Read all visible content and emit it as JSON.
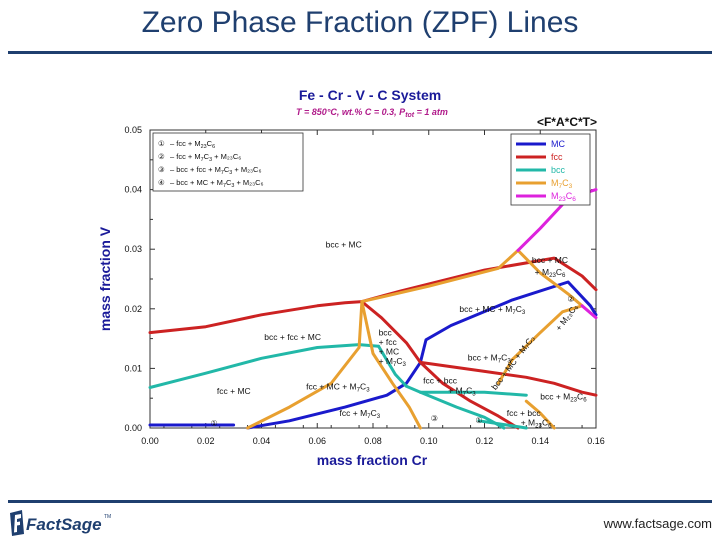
{
  "slide": {
    "title": "Zero Phase Fraction (ZPF) Lines",
    "footer_url": "www.factsage.com",
    "logo_text": "FactSage",
    "logo_tm": "TM"
  },
  "colors": {
    "MC": "#1a1acc",
    "fcc": "#cc2222",
    "bcc": "#22b8a8",
    "M7C3": "#e8a030",
    "M23C6": "#dd22dd",
    "title_blue": "#1f3f6f",
    "chart_title": "#1a1a99",
    "chart_subtitle": "#b01a8a"
  },
  "chart_data": {
    "type": "line",
    "title": "Fe - Cr - V - C System",
    "subtitle": "T = 850°C, wt.% C = 0.3, P",
    "subtitle_sub": "tot",
    "subtitle_tail": " = 1 atm",
    "axis_code": "<F*A*C*T>",
    "xlabel": "mass fraction Cr",
    "ylabel": "mass fraction V",
    "xlim": [
      0,
      0.16
    ],
    "ylim": [
      0,
      0.05
    ],
    "xticks": [
      "0.00",
      "0.02",
      "0.04",
      "0.06",
      "0.08",
      "0.10",
      "0.12",
      "0.14",
      "0.16"
    ],
    "yticks": [
      "0.00",
      "0.01",
      "0.02",
      "0.03",
      "0.04",
      "0.05"
    ],
    "grid": false,
    "legend_position": "top-right",
    "legend": [
      {
        "key": "MC",
        "label": "MC"
      },
      {
        "key": "fcc",
        "label": "fcc"
      },
      {
        "key": "bcc",
        "label": "bcc"
      },
      {
        "key": "M7C3",
        "label": "M",
        "sub1": "7",
        "mid": "C",
        "sub2": "3"
      },
      {
        "key": "M23C6",
        "label": "M",
        "sub1": "23",
        "mid": "C",
        "sub2": "6"
      }
    ],
    "notes": [
      {
        "num": "①",
        "text": "– fcc + M",
        "s1": "23",
        "t2": "C",
        "s2": "6",
        "t3": ""
      },
      {
        "num": "②",
        "text": "– fcc + M",
        "s1": "7",
        "t2": "C",
        "s2": "3",
        "t3": " + M₂₃C₆"
      },
      {
        "num": "③",
        "text": "– bcc + fcc + M",
        "s1": "7",
        "t2": "C",
        "s2": "3",
        "t3": " + M₂₃C₆"
      },
      {
        "num": "④",
        "text": "– bcc + MC + M",
        "s1": "7",
        "t2": "C",
        "s2": "3",
        "t3": " + M₂₃C₆"
      }
    ],
    "series": [
      {
        "name": "MC",
        "color_key": "MC",
        "segments": [
          [
            [
              0.0,
              0.0005
            ],
            [
              0.02,
              0.0005
            ],
            [
              0.03,
              0.0005
            ]
          ],
          [
            [
              0.035,
              0.0
            ],
            [
              0.05,
              0.0012
            ],
            [
              0.07,
              0.0035
            ],
            [
              0.085,
              0.0055
            ],
            [
              0.092,
              0.0075
            ],
            [
              0.097,
              0.011
            ]
          ],
          [
            [
              0.097,
              0.011
            ],
            [
              0.099,
              0.0148
            ],
            [
              0.108,
              0.0172
            ],
            [
              0.13,
              0.0215
            ],
            [
              0.15,
              0.0245
            ],
            [
              0.158,
              0.0205
            ],
            [
              0.16,
              0.019
            ]
          ]
        ]
      },
      {
        "name": "fcc",
        "color_key": "fcc",
        "segments": [
          [
            [
              0.0,
              0.016
            ],
            [
              0.02,
              0.017
            ],
            [
              0.04,
              0.019
            ],
            [
              0.06,
              0.0205
            ],
            [
              0.07,
              0.021
            ],
            [
              0.076,
              0.0212
            ]
          ],
          [
            [
              0.076,
              0.0212
            ],
            [
              0.083,
              0.0185
            ],
            [
              0.092,
              0.0143
            ],
            [
              0.097,
              0.011
            ]
          ],
          [
            [
              0.076,
              0.0212
            ],
            [
              0.09,
              0.023
            ],
            [
              0.12,
              0.0265
            ],
            [
              0.145,
              0.0285
            ],
            [
              0.155,
              0.0255
            ],
            [
              0.16,
              0.0232
            ]
          ],
          [
            [
              0.097,
              0.011
            ],
            [
              0.105,
              0.0075
            ],
            [
              0.115,
              0.0045
            ],
            [
              0.125,
              0.002
            ],
            [
              0.132,
              0.0
            ]
          ],
          [
            [
              0.097,
              0.011
            ],
            [
              0.12,
              0.0095
            ],
            [
              0.135,
              0.0085
            ],
            [
              0.145,
              0.0075
            ],
            [
              0.155,
              0.006
            ],
            [
              0.16,
              0.0055
            ]
          ]
        ]
      },
      {
        "name": "bcc",
        "color_key": "bcc",
        "segments": [
          [
            [
              0.0,
              0.0068
            ],
            [
              0.02,
              0.0092
            ],
            [
              0.04,
              0.0117
            ],
            [
              0.06,
              0.0135
            ],
            [
              0.075,
              0.014
            ],
            [
              0.082,
              0.0137
            ]
          ],
          [
            [
              0.082,
              0.0137
            ],
            [
              0.088,
              0.009
            ],
            [
              0.092,
              0.007
            ],
            [
              0.097,
              0.006
            ]
          ],
          [
            [
              0.097,
              0.006
            ],
            [
              0.11,
              0.0035
            ],
            [
              0.12,
              0.0018
            ],
            [
              0.127,
              0.0
            ]
          ],
          [
            [
              0.097,
              0.006
            ],
            [
              0.12,
              0.006
            ],
            [
              0.135,
              0.0055
            ]
          ],
          [
            [
              0.118,
              0.0012
            ],
            [
              0.128,
              0.0005
            ],
            [
              0.135,
              0.0
            ]
          ]
        ]
      },
      {
        "name": "M7C3",
        "color_key": "M7C3",
        "segments": [
          [
            [
              0.035,
              0.0
            ],
            [
              0.05,
              0.0035
            ],
            [
              0.065,
              0.0075
            ],
            [
              0.075,
              0.0135
            ],
            [
              0.076,
              0.0212
            ]
          ],
          [
            [
              0.076,
              0.0212
            ],
            [
              0.08,
              0.0125
            ],
            [
              0.087,
              0.0075
            ],
            [
              0.093,
              0.0035
            ],
            [
              0.097,
              0.0
            ]
          ],
          [
            [
              0.076,
              0.0212
            ],
            [
              0.1,
              0.0238
            ],
            [
              0.125,
              0.0268
            ],
            [
              0.132,
              0.0298
            ]
          ],
          [
            [
              0.132,
              0.0298
            ],
            [
              0.14,
              0.026
            ],
            [
              0.15,
              0.0225
            ],
            [
              0.155,
              0.0205
            ]
          ],
          [
            [
              0.125,
              0.0075
            ],
            [
              0.13,
              0.0115
            ],
            [
              0.14,
              0.016
            ],
            [
              0.148,
              0.0195
            ],
            [
              0.155,
              0.0205
            ]
          ],
          [
            [
              0.135,
              0.0045
            ],
            [
              0.14,
              0.0025
            ],
            [
              0.145,
              0.0
            ]
          ]
        ]
      },
      {
        "name": "M23C6",
        "color_key": "M23C6",
        "segments": [
          [
            [
              0.132,
              0.0298
            ],
            [
              0.14,
              0.0335
            ],
            [
              0.15,
              0.0385
            ],
            [
              0.16,
              0.04
            ]
          ],
          [
            [
              0.155,
              0.0205
            ],
            [
              0.16,
              0.0185
            ]
          ]
        ]
      }
    ],
    "region_labels": [
      {
        "text": "bcc + MC",
        "x": 0.063,
        "y": 0.0303
      },
      {
        "text": "bcc + MC",
        "x": 0.137,
        "y": 0.0277
      },
      {
        "text": "+ M",
        "s1": "23",
        "t2": "C",
        "s2": "6",
        "x": 0.138,
        "y": 0.0257
      },
      {
        "text": "bcc + MC + M",
        "s1": "7",
        "t2": "C",
        "s2": "3",
        "x": 0.111,
        "y": 0.0195
      },
      {
        "text": "bcc + fcc + MC",
        "x": 0.041,
        "y": 0.0148
      },
      {
        "text": "bcc",
        "x": 0.082,
        "y": 0.0155
      },
      {
        "text": "+ fcc",
        "x": 0.082,
        "y": 0.0139
      },
      {
        "text": "+ MC",
        "x": 0.082,
        "y": 0.0123
      },
      {
        "text": "+ M",
        "s1": "7",
        "t2": "C",
        "s2": "3",
        "x": 0.082,
        "y": 0.0107
      },
      {
        "text": "bcc + M",
        "s1": "7",
        "t2": "C",
        "s2": "3",
        "x": 0.114,
        "y": 0.0113
      },
      {
        "text": "fcc + MC",
        "x": 0.024,
        "y": 0.0057
      },
      {
        "text": "fcc + MC + M",
        "s1": "7",
        "t2": "C",
        "s2": "3",
        "x": 0.056,
        "y": 0.0065
      },
      {
        "text": "fcc + bcc",
        "x": 0.098,
        "y": 0.0075
      },
      {
        "text": "+ M",
        "s1": "7",
        "t2": "C",
        "s2": "3",
        "x": 0.107,
        "y": 0.0058
      },
      {
        "text": "bcc + M",
        "s1": "23",
        "t2": "C",
        "s2": "6",
        "x": 0.14,
        "y": 0.0048
      },
      {
        "text": "fcc + M",
        "s1": "7",
        "t2": "C",
        "s2": "3",
        "x": 0.068,
        "y": 0.002
      },
      {
        "text": "fcc + bcc",
        "x": 0.128,
        "y": 0.002
      },
      {
        "text": "+ M",
        "s1": "23",
        "t2": "C",
        "s2": "6",
        "x": 0.133,
        "y": 0.0004
      }
    ],
    "rotated_labels": [
      {
        "text": "bcc + MC + M₇C₃",
        "x": 0.124,
        "y": 0.0063,
        "angle": -53
      },
      {
        "text": "+ M₂₃C₆",
        "x": 0.147,
        "y": 0.0162,
        "angle": -53
      }
    ],
    "markers": [
      {
        "text": "①",
        "x": 0.023,
        "y": 0.0003
      },
      {
        "text": "②",
        "x": 0.151,
        "y": 0.0212
      },
      {
        "text": "③",
        "x": 0.102,
        "y": 0.0012
      },
      {
        "text": "①",
        "x": 0.118,
        "y": 0.0008
      }
    ]
  }
}
